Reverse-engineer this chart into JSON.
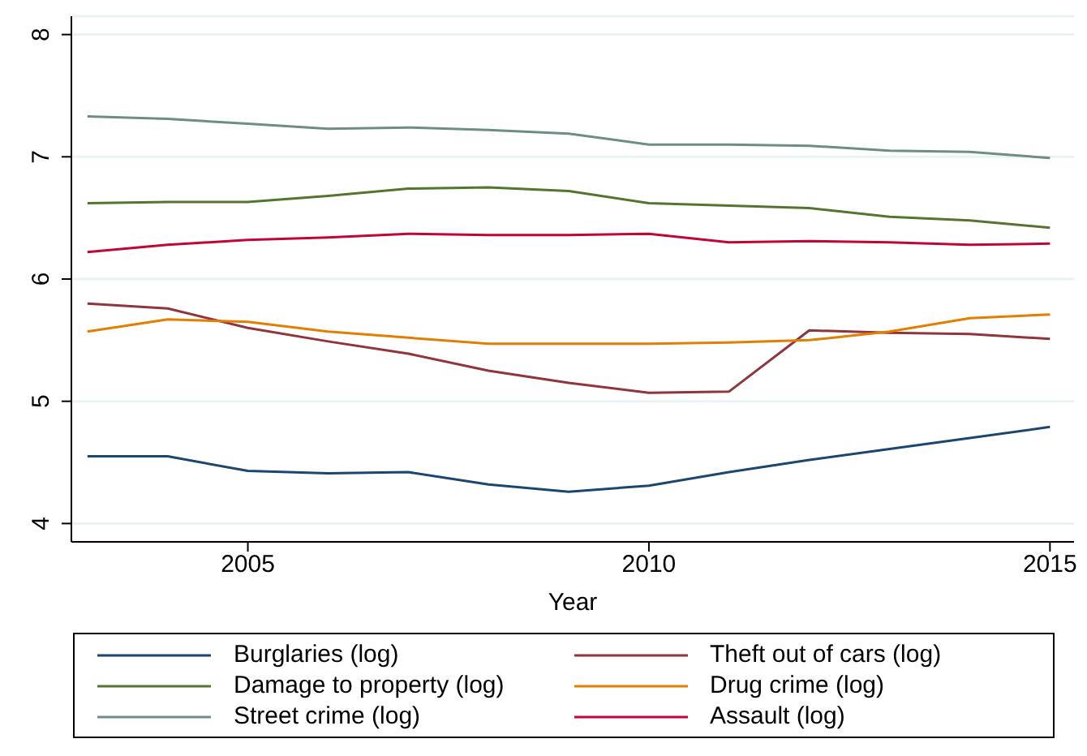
{
  "chart_data": {
    "type": "line",
    "xlabel": "Year",
    "x": [
      2003,
      2004,
      2005,
      2006,
      2007,
      2008,
      2009,
      2010,
      2011,
      2012,
      2013,
      2014,
      2015
    ],
    "series": [
      {
        "name": "Burglaries (log)",
        "color": "#1a476f",
        "values": [
          4.55,
          4.55,
          4.43,
          4.41,
          4.42,
          4.32,
          4.26,
          4.31,
          4.42,
          4.52,
          4.61,
          4.7,
          4.79
        ]
      },
      {
        "name": "Theft out of cars (log)",
        "color": "#90353b",
        "values": [
          5.8,
          5.76,
          5.6,
          5.49,
          5.39,
          5.25,
          5.15,
          5.07,
          5.08,
          5.58,
          5.56,
          5.55,
          5.51
        ]
      },
      {
        "name": "Damage to property (log)",
        "color": "#55752f",
        "values": [
          6.62,
          6.63,
          6.63,
          6.68,
          6.74,
          6.75,
          6.72,
          6.62,
          6.6,
          6.58,
          6.51,
          6.48,
          6.42
        ]
      },
      {
        "name": "Drug crime (log)",
        "color": "#e37e00",
        "values": [
          5.57,
          5.67,
          5.65,
          5.57,
          5.52,
          5.47,
          5.47,
          5.47,
          5.48,
          5.5,
          5.57,
          5.68,
          5.71
        ]
      },
      {
        "name": "Street crime (log)",
        "color": "#6e8e84",
        "values": [
          7.33,
          7.31,
          7.27,
          7.23,
          7.24,
          7.22,
          7.19,
          7.1,
          7.1,
          7.09,
          7.05,
          7.04,
          6.99
        ]
      },
      {
        "name": "Assault (log)",
        "color": "#c10534",
        "values": [
          6.22,
          6.28,
          6.32,
          6.34,
          6.37,
          6.36,
          6.36,
          6.37,
          6.3,
          6.31,
          6.3,
          6.28,
          6.29
        ]
      }
    ],
    "xlim": [
      2002.8,
      2015.3
    ],
    "xticks": [
      2005,
      2010,
      2015
    ],
    "ylim": [
      3.85,
      8.15
    ],
    "yticks": [
      4,
      5,
      6,
      7,
      8
    ],
    "grid": "y",
    "legend": "bottom",
    "marker": "none",
    "line_style": "solid"
  }
}
